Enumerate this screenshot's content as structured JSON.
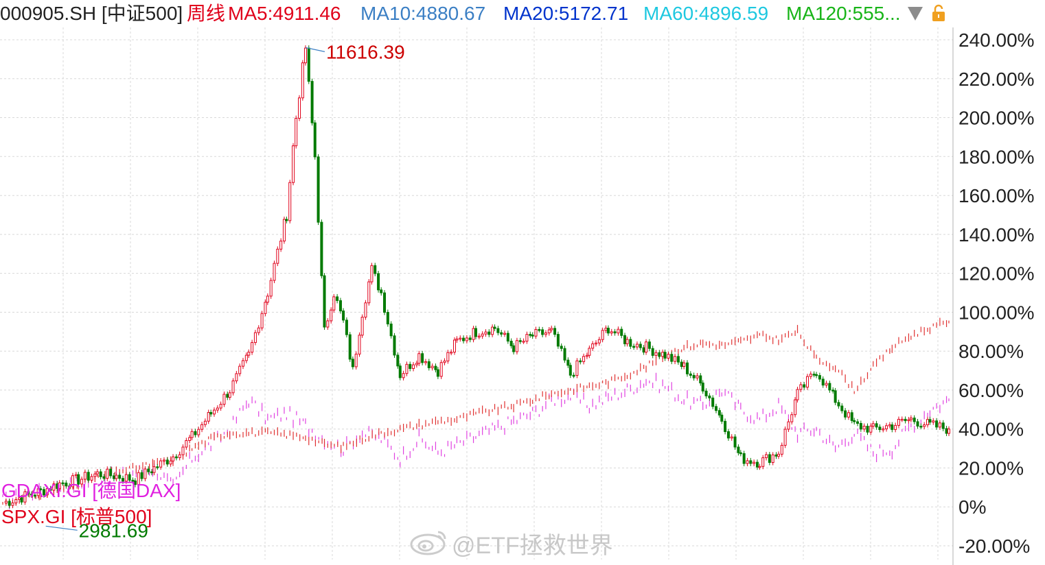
{
  "header": {
    "symbol": "000905.SH [中证500]",
    "period": "周线",
    "ma": [
      {
        "label": "MA5:4911.46",
        "color": "#e0001a"
      },
      {
        "label": "MA10:4880.67",
        "color": "#3b7fc4"
      },
      {
        "label": "MA20:5172.71",
        "color": "#0033cc"
      },
      {
        "label": "MA60:4896.59",
        "color": "#1ec8e0"
      },
      {
        "label": "MA120:555...",
        "color": "#18b418"
      }
    ],
    "dropdown_icon": "triangle-down-icon",
    "lock_icon": "lock-icon"
  },
  "legend": {
    "dax": "GDAXI.GI [德国DAX]",
    "spx": "SPX.GI [标普500]"
  },
  "annotations": {
    "high": "11616.39",
    "low": "2981.69"
  },
  "watermark": "@ETF拯救世界",
  "colors": {
    "csi500_up": "#e0001a",
    "csi500_down": "#007a00",
    "dax": "#e040e0",
    "spx": "#e03030",
    "grid": "#d8d8d8",
    "axis_text": "#222222"
  },
  "chart_data": {
    "type": "line",
    "y_axis_unit": "%",
    "ylim": [
      -20,
      240
    ],
    "y_ticks": [
      "240.00%",
      "220.00%",
      "200.00%",
      "180.00%",
      "160.00%",
      "140.00%",
      "120.00%",
      "100.00%",
      "80.00%",
      "60.00%",
      "40.00%",
      "20.00%",
      "0%",
      "-20.00%"
    ],
    "y_tick_values": [
      240,
      220,
      200,
      180,
      160,
      140,
      120,
      100,
      80,
      60,
      40,
      20,
      0,
      -20
    ],
    "grid": true,
    "x_domain": [
      0,
      100
    ],
    "series": [
      {
        "name": "000905.SH [中证500]",
        "style": "candlestick",
        "x": [
          0,
          2,
          4,
          6,
          8,
          10,
          12,
          14,
          16,
          18,
          20,
          22,
          24,
          26,
          28,
          30,
          31,
          32,
          33,
          34,
          35,
          36,
          37,
          38,
          39,
          40,
          42,
          44,
          46,
          48,
          50,
          52,
          54,
          56,
          58,
          60,
          62,
          64,
          66,
          68,
          70,
          72,
          74,
          76,
          78,
          80,
          82,
          84,
          86,
          88,
          90,
          92,
          94,
          96,
          98,
          100
        ],
        "values": [
          2,
          5,
          8,
          12,
          14,
          17,
          16,
          14,
          20,
          26,
          36,
          48,
          60,
          78,
          110,
          150,
          200,
          236,
          180,
          90,
          110,
          95,
          70,
          100,
          122,
          110,
          68,
          78,
          70,
          85,
          90,
          92,
          82,
          88,
          90,
          68,
          80,
          92,
          85,
          82,
          78,
          72,
          62,
          45,
          25,
          23,
          28,
          58,
          70,
          55,
          42,
          40,
          42,
          45,
          42,
          40
        ]
      },
      {
        "name": "GDAXI.GI [德国DAX]",
        "x": [
          0,
          4,
          8,
          12,
          16,
          18,
          20,
          22,
          24,
          26,
          28,
          30,
          32,
          34,
          36,
          38,
          40,
          42,
          44,
          46,
          48,
          50,
          52,
          54,
          56,
          58,
          60,
          62,
          64,
          66,
          68,
          70,
          72,
          74,
          76,
          78,
          80,
          82,
          84,
          86,
          88,
          90,
          92,
          94,
          96,
          98,
          100
        ],
        "values": [
          3,
          8,
          12,
          16,
          20,
          10,
          25,
          32,
          40,
          55,
          45,
          48,
          42,
          35,
          30,
          38,
          35,
          25,
          35,
          28,
          32,
          36,
          40,
          44,
          48,
          55,
          57,
          52,
          56,
          60,
          65,
          62,
          55,
          52,
          60,
          50,
          45,
          52,
          38,
          40,
          30,
          38,
          28,
          30,
          42,
          50,
          55
        ]
      },
      {
        "name": "SPX.GI [标普500]",
        "x": [
          0,
          4,
          8,
          12,
          16,
          18,
          20,
          22,
          24,
          26,
          28,
          30,
          32,
          34,
          36,
          38,
          40,
          42,
          44,
          46,
          48,
          50,
          52,
          54,
          56,
          58,
          60,
          62,
          64,
          66,
          68,
          70,
          72,
          74,
          76,
          78,
          80,
          82,
          84,
          86,
          88,
          90,
          92,
          94,
          96,
          98,
          100
        ],
        "values": [
          2,
          6,
          12,
          18,
          22,
          24,
          30,
          35,
          38,
          38,
          38,
          37,
          36,
          32,
          31,
          35,
          38,
          40,
          42,
          44,
          45,
          48,
          50,
          52,
          55,
          58,
          60,
          62,
          64,
          68,
          72,
          78,
          82,
          84,
          83,
          85,
          88,
          86,
          90,
          76,
          72,
          60,
          72,
          82,
          88,
          92,
          95
        ]
      }
    ]
  }
}
